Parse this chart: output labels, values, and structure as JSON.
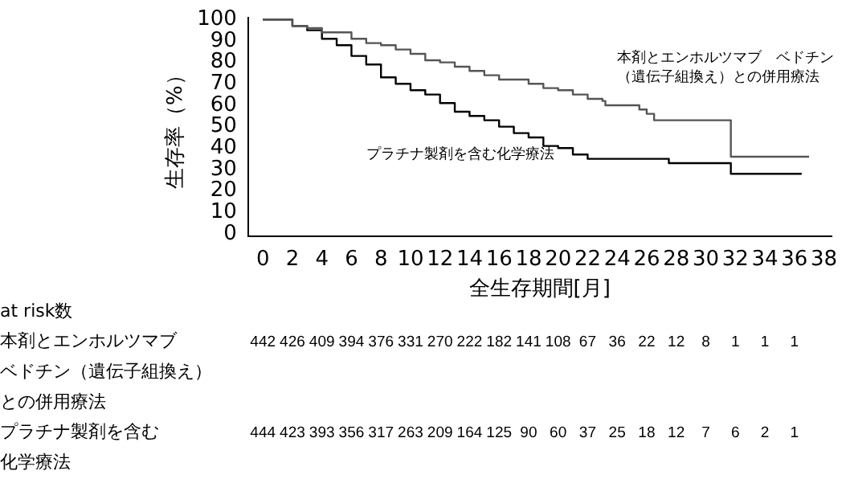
{
  "chart_data": {
    "type": "step",
    "xlabel": "全生存期間[月]",
    "ylabel": "生存率（%）",
    "xlim": [
      -1,
      38.5
    ],
    "xticks": [
      0,
      2,
      4,
      6,
      8,
      10,
      12,
      14,
      16,
      18,
      20,
      22,
      24,
      26,
      28,
      30,
      32,
      34,
      36,
      38
    ],
    "ylim": [
      -1,
      101
    ],
    "yticks": [
      0,
      10,
      20,
      30,
      40,
      50,
      60,
      70,
      80,
      90,
      100
    ],
    "grid": false,
    "legend": false,
    "marker": "none",
    "line_style": "solid",
    "series": [
      {
        "name": "本剤とエンホルツマブ　ベドチン（遺伝子組換え）との併用療法",
        "color": "#555555",
        "x": [
          0,
          2,
          3,
          4,
          6,
          7,
          8,
          9,
          10,
          11,
          12,
          13,
          14,
          15,
          16,
          17,
          18,
          19,
          20,
          21,
          22,
          23,
          23.2,
          25,
          25.5,
          26,
          26.5,
          31.7,
          31.7,
          37
        ],
        "values": [
          100,
          97,
          96,
          94,
          91,
          89,
          88,
          86,
          84,
          81,
          80,
          78,
          76,
          74,
          72,
          72,
          70,
          68,
          67,
          65,
          63,
          62,
          60,
          60,
          58,
          56,
          53,
          53,
          36,
          36
        ]
      },
      {
        "name": "プラチナ製剤を含む化学療法",
        "color": "#000000",
        "x": [
          0,
          2,
          3,
          4,
          5,
          6,
          7,
          8,
          9,
          10,
          11,
          12,
          13,
          14,
          15,
          16,
          17,
          18,
          19,
          20,
          21,
          22,
          27.5,
          27.5,
          31.7,
          31.7,
          36.5
        ],
        "values": [
          100,
          97,
          95,
          91,
          88,
          83,
          79,
          73,
          70,
          67,
          65,
          61,
          57,
          55,
          53,
          50,
          47,
          45,
          41,
          40,
          37,
          35,
          35,
          33,
          33,
          28,
          28
        ]
      }
    ],
    "annotations": [
      "at risk数",
      "本剤とエンホルツマブ",
      "442 426 409 394 376 331 270 222 182 141 108 67 36 22 12 8 1 1 1",
      "ベドチン（遺伝子組換え）",
      "との併用療法",
      "プラチナ製剤を含む",
      "444 423 393 356 317 263 209 164 125 90 60 37 25 18 12 7 6 2 1",
      "化学療法"
    ]
  }
}
